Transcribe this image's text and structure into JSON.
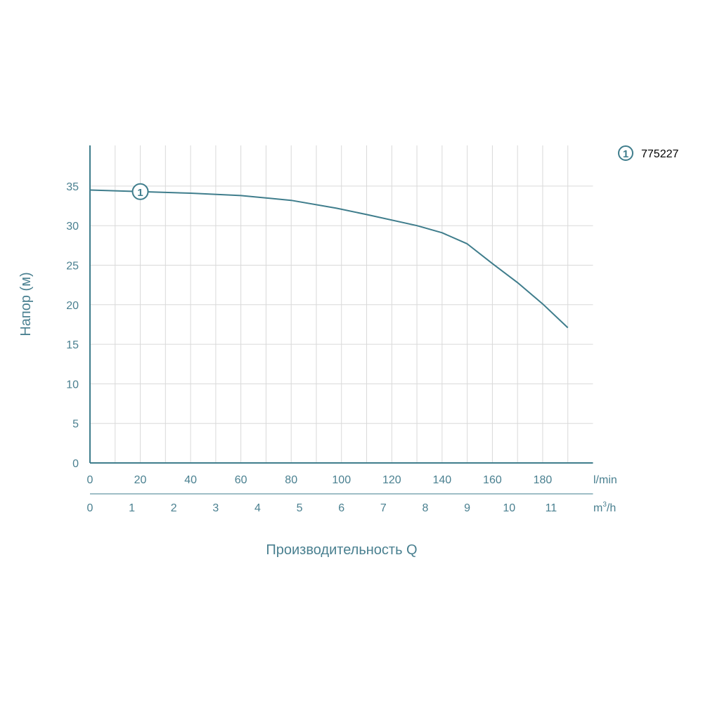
{
  "chart_data": {
    "type": "line",
    "ylabel": "Напор (м)",
    "xlabel": "Производительность Q",
    "x_unit_primary": "l/min",
    "x_unit_secondary_base": "m",
    "x_unit_secondary_sup": "3",
    "x_unit_secondary_tail": "/h",
    "xlim": [
      0,
      200
    ],
    "ylim": [
      0,
      40
    ],
    "x_ticks": [
      "0",
      "20",
      "40",
      "60",
      "80",
      "100",
      "120",
      "140",
      "160",
      "180"
    ],
    "x_ticks_secondary": [
      "0",
      "1",
      "2",
      "3",
      "4",
      "5",
      "6",
      "7",
      "8",
      "9",
      "10",
      "11"
    ],
    "y_ticks": [
      "0",
      "5",
      "10",
      "15",
      "20",
      "25",
      "30",
      "35"
    ],
    "grid": true,
    "legend_position": "top-right",
    "colors": {
      "axis": "#3f7d8c",
      "line": "#3f7d8c",
      "grid": "#d9d9d9",
      "text": "#4a8090"
    },
    "series": [
      {
        "name": "775227",
        "marker_label": "1",
        "x": [
          0,
          20,
          40,
          60,
          80,
          98,
          110,
          130,
          140,
          150,
          160,
          170,
          180,
          190
        ],
        "y": [
          34.5,
          34.3,
          34.1,
          33.8,
          33.2,
          32.2,
          31.4,
          30.0,
          29.1,
          27.7,
          25.2,
          22.8,
          20.1,
          17.1
        ]
      }
    ]
  }
}
